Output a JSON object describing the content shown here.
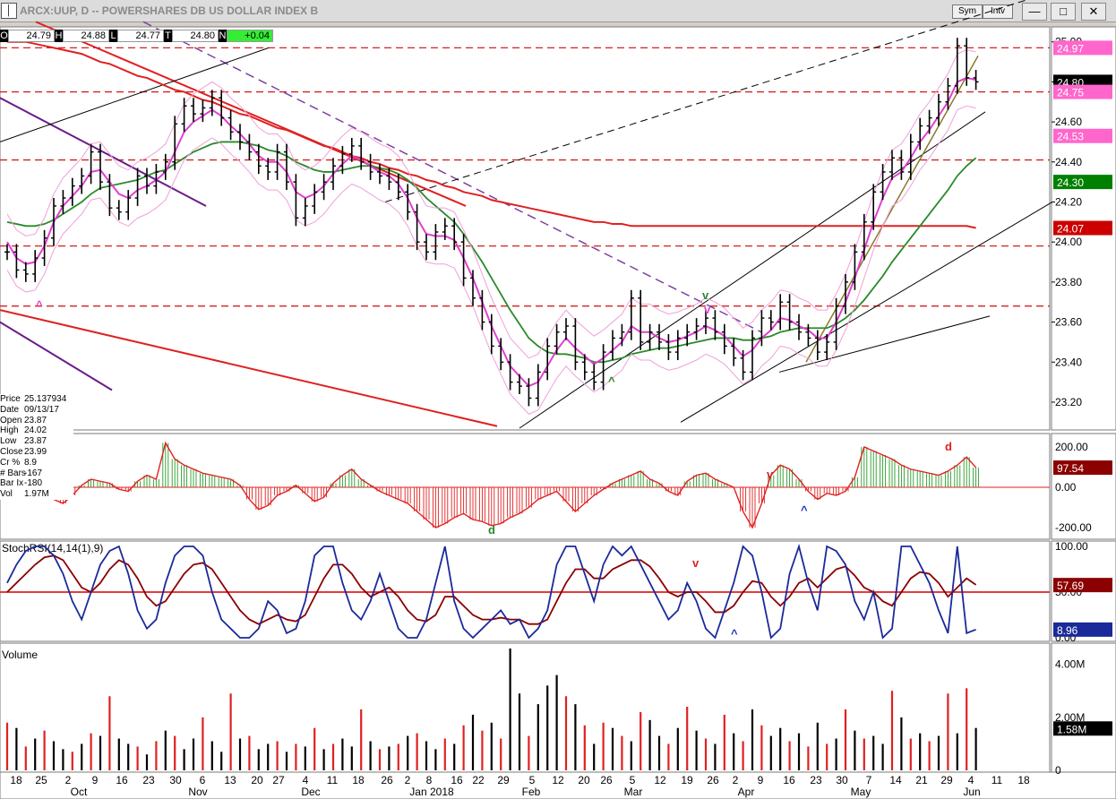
{
  "window": {
    "title": "ARCX:UUP, D -- POWERSHARES DB US DOLLAR INDEX B",
    "sym_label": "Sym",
    "int_label": "Intv",
    "minimize": "—",
    "restore": "□",
    "close": "✕"
  },
  "ohlc": [
    {
      "key": "O",
      "value": "24.79"
    },
    {
      "key": "H",
      "value": "24.88"
    },
    {
      "key": "L",
      "value": "24.77"
    },
    {
      "key": "T",
      "value": "24.80"
    },
    {
      "key": "N",
      "value": "+0.04"
    }
  ],
  "info": [
    {
      "label": "Price",
      "value": "25.137934"
    },
    {
      "label": "Date",
      "value": "09/13/17"
    },
    {
      "label": "Open",
      "value": "23.87"
    },
    {
      "label": "High",
      "value": "24.02"
    },
    {
      "label": "Low",
      "value": "23.87"
    },
    {
      "label": "Close",
      "value": "23.99"
    },
    {
      "label": "Cr %",
      "value": "8.9"
    },
    {
      "label": "# Bars",
      "value": "-167"
    },
    {
      "label": "Bar Ix",
      "value": "-180"
    },
    {
      "label": "Vol",
      "value": "1.97M"
    }
  ],
  "chart_data": {
    "type": "line",
    "price": {
      "ticks": [
        "25.00",
        "24.80",
        "24.60",
        "24.40",
        "24.20",
        "24.00",
        "23.80",
        "23.60",
        "23.40",
        "23.20"
      ],
      "ylim": [
        23.07,
        25.03
      ],
      "close": [
        23.95,
        23.86,
        23.84,
        23.92,
        24.02,
        24.18,
        24.22,
        24.28,
        24.33,
        24.45,
        24.3,
        24.17,
        24.15,
        24.22,
        24.33,
        24.28,
        24.35,
        24.4,
        24.59,
        24.68,
        24.64,
        24.67,
        24.72,
        24.62,
        24.55,
        24.5,
        24.45,
        24.38,
        24.35,
        24.45,
        24.3,
        24.12,
        24.18,
        24.25,
        24.3,
        24.38,
        24.44,
        24.48,
        24.4,
        24.35,
        24.33,
        24.3,
        24.25,
        24.15,
        24.0,
        23.95,
        24.05,
        24.08,
        24.0,
        23.82,
        23.72,
        23.6,
        23.48,
        23.4,
        23.3,
        23.28,
        23.22,
        23.35,
        23.48,
        23.55,
        23.58,
        23.4,
        23.35,
        23.3,
        23.45,
        23.52,
        23.55,
        23.72,
        23.5,
        23.55,
        23.5,
        23.45,
        23.52,
        23.55,
        23.58,
        23.62,
        23.55,
        23.48,
        23.42,
        23.35,
        23.52,
        23.62,
        23.6,
        23.7,
        23.6,
        23.55,
        23.52,
        23.45,
        23.5,
        23.68,
        23.8,
        23.95,
        24.1,
        24.25,
        24.35,
        24.42,
        24.35,
        24.5,
        24.58,
        24.62,
        24.7,
        24.78,
        24.98,
        24.82,
        24.8
      ],
      "ma_short": [
        24.0,
        23.92,
        23.89,
        23.9,
        23.98,
        24.1,
        24.18,
        24.23,
        24.28,
        24.35,
        24.36,
        24.3,
        24.24,
        24.22,
        24.26,
        24.28,
        24.31,
        24.35,
        24.45,
        24.55,
        24.6,
        24.63,
        24.66,
        24.63,
        24.58,
        24.54,
        24.49,
        24.43,
        24.4,
        24.4,
        24.35,
        24.25,
        24.22,
        24.24,
        24.28,
        24.34,
        24.39,
        24.43,
        24.41,
        24.38,
        24.35,
        24.33,
        24.29,
        24.22,
        24.12,
        24.04,
        24.03,
        24.03,
        24.01,
        23.92,
        23.82,
        23.7,
        23.58,
        23.48,
        23.38,
        23.33,
        23.28,
        23.3,
        23.38,
        23.46,
        23.52,
        23.47,
        23.43,
        23.39,
        23.42,
        23.46,
        23.5,
        23.58,
        23.55,
        23.55,
        23.52,
        23.5,
        23.51,
        23.53,
        23.55,
        23.58,
        23.56,
        23.53,
        23.48,
        23.43,
        23.46,
        23.52,
        23.56,
        23.62,
        23.61,
        23.58,
        23.56,
        23.52,
        23.52,
        23.6,
        23.7,
        23.82,
        23.96,
        24.1,
        24.22,
        24.32,
        24.35,
        24.42,
        24.5,
        24.56,
        24.63,
        24.7,
        24.8,
        24.82,
        24.81
      ],
      "ma_mid": [
        24.1,
        24.09,
        24.08,
        24.08,
        24.09,
        24.11,
        24.14,
        24.17,
        24.2,
        24.24,
        24.27,
        24.28,
        24.29,
        24.3,
        24.31,
        24.33,
        24.35,
        24.36,
        24.39,
        24.42,
        24.45,
        24.47,
        24.49,
        24.5,
        24.5,
        24.5,
        24.49,
        24.48,
        24.46,
        24.45,
        24.43,
        24.4,
        24.38,
        24.36,
        24.35,
        24.35,
        24.36,
        24.37,
        24.38,
        24.38,
        24.37,
        24.36,
        24.34,
        24.31,
        24.27,
        24.22,
        24.18,
        24.14,
        24.1,
        24.04,
        23.97,
        23.9,
        23.82,
        23.74,
        23.66,
        23.59,
        23.52,
        23.48,
        23.45,
        23.44,
        23.44,
        23.43,
        23.42,
        23.4,
        23.4,
        23.41,
        23.42,
        23.44,
        23.45,
        23.46,
        23.47,
        23.47,
        23.48,
        23.49,
        23.5,
        23.51,
        23.52,
        23.52,
        23.52,
        23.51,
        23.51,
        23.52,
        23.53,
        23.55,
        23.56,
        23.57,
        23.57,
        23.57,
        23.57,
        23.59,
        23.62,
        23.66,
        23.71,
        23.77,
        23.83,
        23.9,
        23.96,
        24.02,
        24.08,
        24.14,
        24.2,
        24.26,
        24.33,
        24.38,
        24.42
      ],
      "ma_long": [
        25.0,
        25.0,
        25.0,
        24.99,
        24.98,
        24.97,
        24.96,
        24.95,
        24.94,
        24.92,
        24.9,
        24.89,
        24.87,
        24.85,
        24.83,
        24.82,
        24.8,
        24.78,
        24.76,
        24.75,
        24.73,
        24.71,
        24.7,
        24.68,
        24.66,
        24.64,
        24.63,
        24.61,
        24.59,
        24.57,
        24.56,
        24.54,
        24.52,
        24.5,
        24.48,
        24.47,
        24.45,
        24.43,
        24.42,
        24.4,
        24.39,
        24.37,
        24.36,
        24.34,
        24.33,
        24.31,
        24.3,
        24.28,
        24.27,
        24.25,
        24.24,
        24.23,
        24.21,
        24.2,
        24.19,
        24.18,
        24.17,
        24.16,
        24.15,
        24.14,
        24.13,
        24.12,
        24.11,
        24.1,
        24.1,
        24.09,
        24.09,
        24.08,
        24.08,
        24.08,
        24.08,
        24.08,
        24.08,
        24.08,
        24.08,
        24.08,
        24.08,
        24.08,
        24.08,
        24.08,
        24.08,
        24.08,
        24.08,
        24.08,
        24.08,
        24.08,
        24.08,
        24.08,
        24.08,
        24.08,
        24.08,
        24.08,
        24.08,
        24.08,
        24.08,
        24.08,
        24.08,
        24.08,
        24.08,
        24.08,
        24.08,
        24.08,
        24.08,
        24.08,
        24.07
      ],
      "right_labels": [
        {
          "value": "24.97",
          "color": "#ff66cc"
        },
        {
          "value": "24.80",
          "color": "#000000"
        },
        {
          "value": "24.75",
          "color": "#ff66cc"
        },
        {
          "value": "24.53",
          "color": "#ff66cc"
        },
        {
          "value": "24.30",
          "color": "#008000"
        },
        {
          "value": "24.07",
          "color": "#cc0000"
        }
      ]
    },
    "oscillator": {
      "ticks": [
        "200.00",
        "0.00",
        "-200.00"
      ],
      "ylim": [
        -240,
        240
      ],
      "values": [
        60,
        75,
        45,
        20,
        -30,
        -60,
        -80,
        -40,
        10,
        40,
        30,
        20,
        -10,
        -20,
        30,
        60,
        40,
        220,
        140,
        110,
        90,
        70,
        60,
        50,
        40,
        10,
        -60,
        -110,
        -90,
        -40,
        -20,
        10,
        -30,
        -70,
        -50,
        20,
        60,
        90,
        40,
        10,
        -20,
        -40,
        -60,
        -80,
        -120,
        -160,
        -200,
        -180,
        -150,
        -130,
        -160,
        -170,
        -190,
        -180,
        -150,
        -130,
        -100,
        -60,
        -40,
        -20,
        -70,
        -120,
        -80,
        -40,
        -10,
        20,
        40,
        60,
        80,
        40,
        20,
        -20,
        -40,
        30,
        60,
        70,
        40,
        20,
        0,
        -120,
        -200,
        -80,
        60,
        110,
        90,
        40,
        -20,
        -60,
        -30,
        -40,
        -20,
        50,
        200,
        180,
        160,
        140,
        110,
        90,
        80,
        70,
        60,
        80,
        110,
        150,
        98
      ],
      "last_label": "97.54",
      "markers": [
        "d",
        "d"
      ]
    },
    "stoch": {
      "title": "StochRSI(14,14(1),9)",
      "ticks": [
        "100.00",
        "50.00",
        "0.00"
      ],
      "fast_label": "8.96",
      "slow_label": "57.69",
      "fast": [
        60,
        80,
        95,
        100,
        100,
        90,
        70,
        40,
        20,
        50,
        80,
        95,
        100,
        70,
        30,
        10,
        20,
        60,
        90,
        100,
        100,
        90,
        50,
        20,
        10,
        0,
        0,
        10,
        40,
        30,
        5,
        10,
        40,
        90,
        100,
        100,
        60,
        30,
        20,
        40,
        70,
        40,
        10,
        0,
        0,
        20,
        60,
        100,
        40,
        10,
        0,
        10,
        20,
        30,
        15,
        20,
        0,
        10,
        30,
        80,
        100,
        100,
        70,
        40,
        80,
        100,
        90,
        100,
        80,
        60,
        40,
        20,
        30,
        60,
        40,
        10,
        0,
        30,
        60,
        100,
        90,
        50,
        0,
        10,
        70,
        100,
        60,
        30,
        100,
        95,
        80,
        40,
        20,
        50,
        0,
        10,
        100,
        100,
        80,
        60,
        30,
        5,
        100,
        5,
        9
      ],
      "slow": [
        50,
        60,
        70,
        80,
        88,
        90,
        85,
        70,
        55,
        50,
        60,
        75,
        85,
        80,
        65,
        45,
        35,
        40,
        55,
        70,
        80,
        82,
        75,
        60,
        45,
        30,
        20,
        15,
        20,
        25,
        20,
        18,
        25,
        45,
        65,
        80,
        80,
        70,
        55,
        45,
        50,
        55,
        45,
        30,
        20,
        18,
        25,
        45,
        45,
        35,
        25,
        20,
        20,
        22,
        20,
        20,
        15,
        15,
        20,
        40,
        60,
        75,
        75,
        65,
        65,
        75,
        80,
        85,
        85,
        78,
        65,
        50,
        45,
        50,
        50,
        40,
        28,
        28,
        35,
        50,
        62,
        60,
        45,
        35,
        45,
        60,
        65,
        55,
        65,
        75,
        78,
        68,
        55,
        50,
        40,
        35,
        50,
        65,
        72,
        70,
        60,
        45,
        55,
        65,
        58
      ]
    },
    "volume": {
      "title": "Volume",
      "ticks": [
        "4.00M",
        "2.00M",
        "0"
      ],
      "last_label": "1.58M",
      "values": [
        1.8,
        1.6,
        0.9,
        1.2,
        1.5,
        1.1,
        0.8,
        0.7,
        1.0,
        1.4,
        1.3,
        2.8,
        1.2,
        1.0,
        0.9,
        0.6,
        1.1,
        1.5,
        1.3,
        0.8,
        1.2,
        2.0,
        1.1,
        0.7,
        2.9,
        1.2,
        1.3,
        0.8,
        1.0,
        1.1,
        0.7,
        1.0,
        0.9,
        1.6,
        0.8,
        1.0,
        1.2,
        0.9,
        2.3,
        1.1,
        0.8,
        0.9,
        1.0,
        1.3,
        1.4,
        1.1,
        0.8,
        1.2,
        1.0,
        1.7,
        2.1,
        1.5,
        1.8,
        1.2,
        4.6,
        2.9,
        1.3,
        2.5,
        3.2,
        3.6,
        2.8,
        2.5,
        1.7,
        1.0,
        1.8,
        1.6,
        1.3,
        1.1,
        2.2,
        1.9,
        1.3,
        1.0,
        1.6,
        2.4,
        1.5,
        1.2,
        1.0,
        2.1,
        1.4,
        1.1,
        2.3,
        1.7,
        1.3,
        1.6,
        1.1,
        1.4,
        0.9,
        1.8,
        1.0,
        1.2,
        2.3,
        1.5,
        1.2,
        1.3,
        1.0,
        3.0,
        2.0,
        1.2,
        1.4,
        1.1,
        1.3,
        2.9,
        1.4,
        3.1,
        1.6
      ],
      "colors": [
        "r",
        "b",
        "r",
        "b",
        "r",
        "b",
        "b",
        "r",
        "b",
        "r",
        "b",
        "r",
        "b",
        "b",
        "r",
        "b",
        "r",
        "b",
        "r",
        "b",
        "b",
        "r",
        "b",
        "b",
        "r",
        "b",
        "r",
        "b",
        "b",
        "r",
        "b",
        "r",
        "b",
        "r",
        "b",
        "r",
        "b",
        "b",
        "r",
        "b",
        "r",
        "b",
        "r",
        "b",
        "r",
        "b",
        "b",
        "r",
        "b",
        "r",
        "b",
        "r",
        "b",
        "r",
        "b",
        "b",
        "r",
        "b",
        "b",
        "b",
        "r",
        "b",
        "r",
        "b",
        "r",
        "b",
        "r",
        "b",
        "r",
        "b",
        "b",
        "r",
        "b",
        "r",
        "b",
        "r",
        "b",
        "r",
        "b",
        "r",
        "b",
        "r",
        "b",
        "b",
        "r",
        "b",
        "r",
        "b",
        "r",
        "b",
        "r",
        "b",
        "r",
        "b",
        "b",
        "r",
        "b",
        "r",
        "b",
        "r",
        "b",
        "r",
        "b",
        "r",
        "b"
      ]
    },
    "x_axis": {
      "ticks": [
        "18",
        "25",
        "2",
        "9",
        "16",
        "23",
        "30",
        "6",
        "13",
        "20",
        "27",
        "4",
        "11",
        "18",
        "26",
        "2",
        "8",
        "16",
        "22",
        "29",
        "5",
        "12",
        "20",
        "26",
        "5",
        "12",
        "19",
        "26",
        "2",
        "9",
        "16",
        "23",
        "30",
        "7",
        "14",
        "21",
        "29",
        "4",
        "11",
        "18"
      ],
      "months": [
        "Oct",
        "Nov",
        "Dec",
        "Jan 2018",
        "Feb",
        "Mar",
        "Apr",
        "May",
        "Jun"
      ]
    },
    "arrows_green": [
      "^",
      "v"
    ],
    "arrows_magenta": [
      "^",
      "v"
    ],
    "arrows_red": [
      "v",
      "v"
    ],
    "arrows_blue": [
      "^",
      "^"
    ]
  }
}
